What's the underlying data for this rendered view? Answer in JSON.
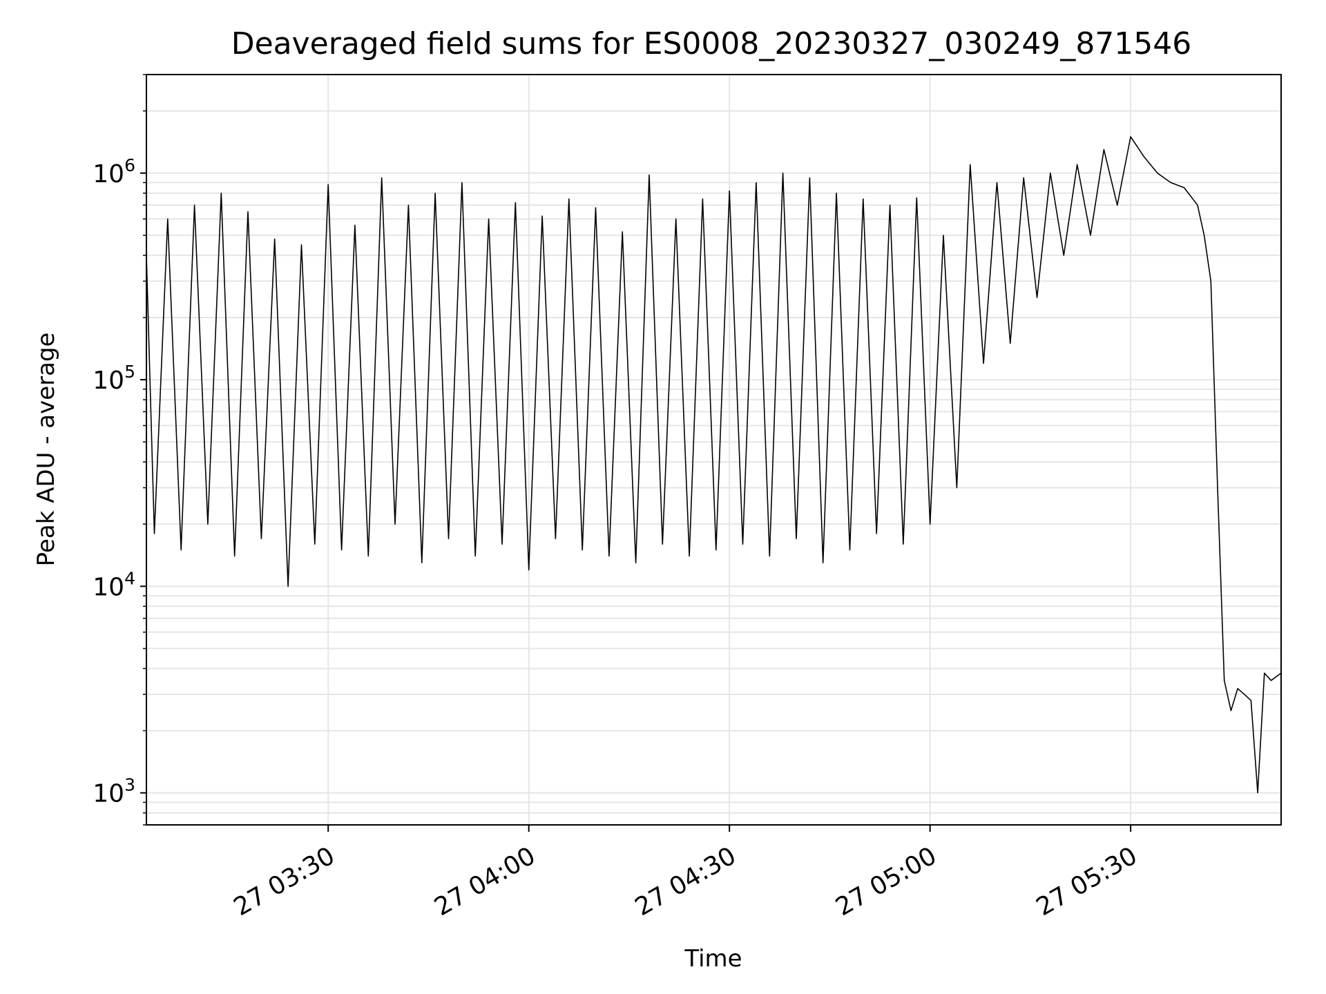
{
  "chart_data": {
    "type": "line",
    "title": "Deaveraged field sums for ES0008_20230327_030249_871546",
    "xlabel": "Time",
    "ylabel": "Peak ADU - average",
    "y_scale": "log",
    "ylim": [
      700,
      3000000
    ],
    "xlim": [
      "27 03:02:49",
      "27 05:52:30"
    ],
    "grid": true,
    "line_color": "#000000",
    "grid_color": "#e5e5e5",
    "x_ticks": [
      {
        "value": "27 03:30:00",
        "label": "27 03:30"
      },
      {
        "value": "27 04:00:00",
        "label": "27 04:00"
      },
      {
        "value": "27 04:30:00",
        "label": "27 04:30"
      },
      {
        "value": "27 05:00:00",
        "label": "27 05:00"
      },
      {
        "value": "27 05:30:00",
        "label": "27 05:30"
      }
    ],
    "y_ticks": [
      {
        "value": 1000,
        "base": "10",
        "exp": "3"
      },
      {
        "value": 10000,
        "base": "10",
        "exp": "4"
      },
      {
        "value": 100000,
        "base": "10",
        "exp": "5"
      },
      {
        "value": 1000000,
        "base": "10",
        "exp": "6"
      }
    ],
    "series": [
      {
        "x": [
          "27 03:02:49",
          "27 03:04:00",
          "27 03:06:00",
          "27 03:08:00",
          "27 03:10:00",
          "27 03:12:00",
          "27 03:14:00",
          "27 03:16:00",
          "27 03:18:00",
          "27 03:20:00",
          "27 03:22:00",
          "27 03:24:00",
          "27 03:26:00",
          "27 03:28:00",
          "27 03:30:00",
          "27 03:32:00",
          "27 03:34:00",
          "27 03:36:00",
          "27 03:38:00",
          "27 03:40:00",
          "27 03:42:00",
          "27 03:44:00",
          "27 03:46:00",
          "27 03:48:00",
          "27 03:50:00",
          "27 03:52:00",
          "27 03:54:00",
          "27 03:56:00",
          "27 03:58:00",
          "27 04:00:00",
          "27 04:02:00",
          "27 04:04:00",
          "27 04:06:00",
          "27 04:08:00",
          "27 04:10:00",
          "27 04:12:00",
          "27 04:14:00",
          "27 04:16:00",
          "27 04:18:00",
          "27 04:20:00",
          "27 04:22:00",
          "27 04:24:00",
          "27 04:26:00",
          "27 04:28:00",
          "27 04:30:00",
          "27 04:32:00",
          "27 04:34:00",
          "27 04:36:00",
          "27 04:38:00",
          "27 04:40:00",
          "27 04:42:00",
          "27 04:44:00",
          "27 04:46:00",
          "27 04:48:00",
          "27 04:50:00",
          "27 04:52:00",
          "27 04:54:00",
          "27 04:56:00",
          "27 04:58:00",
          "27 05:00:00",
          "27 05:02:00",
          "27 05:04:00",
          "27 05:06:00",
          "27 05:08:00",
          "27 05:10:00",
          "27 05:12:00",
          "27 05:14:00",
          "27 05:16:00",
          "27 05:18:00",
          "27 05:20:00",
          "27 05:22:00",
          "27 05:24:00",
          "27 05:26:00",
          "27 05:28:00",
          "27 05:30:00",
          "27 05:32:00",
          "27 05:34:00",
          "27 05:36:00",
          "27 05:38:00",
          "27 05:40:00",
          "27 05:41:00",
          "27 05:42:00",
          "27 05:43:00",
          "27 05:44:00",
          "27 05:45:00",
          "27 05:46:00",
          "27 05:47:00",
          "27 05:48:00",
          "27 05:49:00",
          "27 05:50:00",
          "27 05:51:00",
          "27 05:52:30"
        ],
        "y": [
          400000,
          18000,
          600000,
          15000,
          700000,
          20000,
          800000,
          14000,
          650000,
          17000,
          480000,
          10000,
          450000,
          16000,
          880000,
          15000,
          560000,
          14000,
          950000,
          20000,
          700000,
          13000,
          800000,
          17000,
          900000,
          14000,
          600000,
          16000,
          720000,
          12000,
          620000,
          17000,
          750000,
          15000,
          680000,
          14000,
          520000,
          13000,
          980000,
          16000,
          600000,
          14000,
          750000,
          15000,
          820000,
          16000,
          900000,
          14000,
          1000000,
          17000,
          950000,
          13000,
          800000,
          15000,
          750000,
          18000,
          700000,
          16000,
          760000,
          20000,
          500000,
          30000,
          1100000,
          120000,
          900000,
          150000,
          950000,
          250000,
          1000000,
          400000,
          1100000,
          500000,
          1300000,
          700000,
          1500000,
          1200000,
          1000000,
          900000,
          850000,
          700000,
          500000,
          300000,
          30000,
          3500,
          2500,
          3200,
          3000,
          2800,
          1000,
          3800,
          3500,
          3800
        ]
      }
    ]
  }
}
